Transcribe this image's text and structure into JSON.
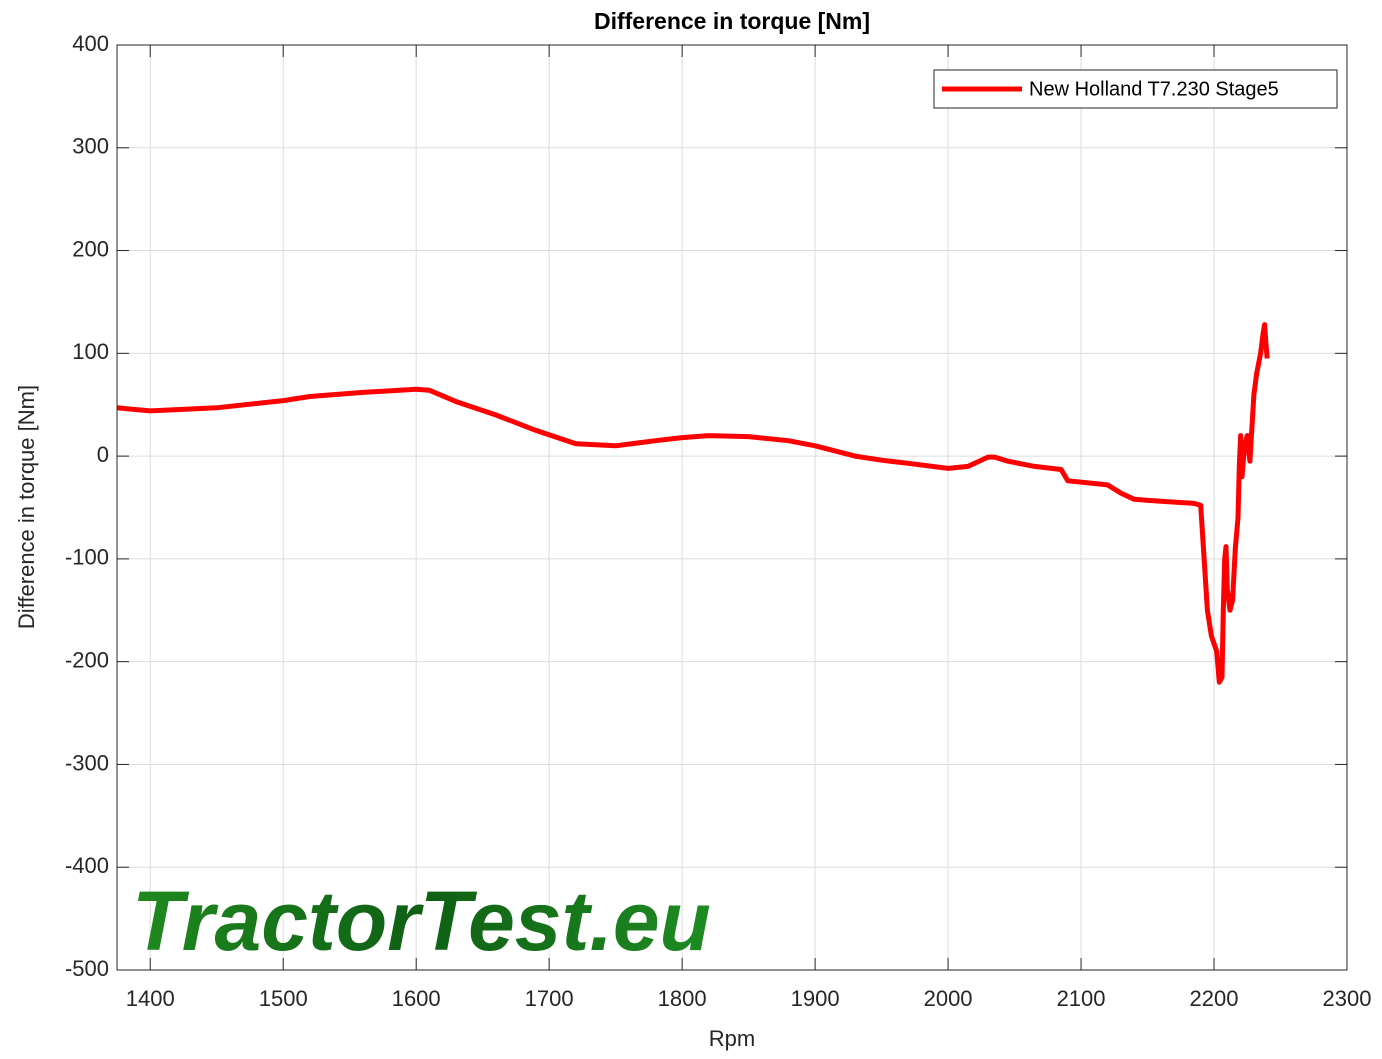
{
  "chart_data": {
    "type": "line",
    "title": "Difference in torque [Nm]",
    "xlabel": "Rpm",
    "ylabel": "Difference in torque [Nm]",
    "watermark": "TractorTest.eu",
    "x": [
      1375,
      1400,
      1450,
      1500,
      1520,
      1560,
      1600,
      1610,
      1630,
      1660,
      1690,
      1720,
      1750,
      1780,
      1800,
      1820,
      1850,
      1880,
      1900,
      1930,
      1950,
      1970,
      2000,
      2015,
      2030,
      2035,
      2045,
      2065,
      2085,
      2090,
      2120,
      2130,
      2140,
      2160,
      2185,
      2190,
      2195,
      2198,
      2202,
      2204,
      2206,
      2207,
      2208,
      2209,
      2210,
      2212,
      2214,
      2216,
      2218,
      2219,
      2220,
      2221,
      2223,
      2225,
      2227,
      2230,
      2232,
      2235,
      2237,
      2238,
      2239,
      2240
    ],
    "series": [
      {
        "name": "New Holland T7.230 Stage5",
        "color": "#ff0000",
        "values": [
          47,
          44,
          47,
          54,
          58,
          62,
          65,
          64,
          53,
          40,
          25,
          12,
          10,
          15,
          18,
          20,
          19,
          15,
          10,
          0,
          -4,
          -7,
          -12,
          -10,
          -1,
          -1,
          -5,
          -10,
          -13,
          -24,
          -28,
          -36,
          -42,
          -44,
          -46,
          -48,
          -150,
          -175,
          -190,
          -220,
          -215,
          -150,
          -100,
          -88,
          -130,
          -150,
          -140,
          -90,
          -60,
          -10,
          20,
          -20,
          10,
          20,
          -5,
          60,
          80,
          100,
          120,
          128,
          110,
          95
        ]
      }
    ],
    "xlim": [
      1375,
      2300
    ],
    "ylim": [
      -500,
      400
    ],
    "xticks": [
      1400,
      1500,
      1600,
      1700,
      1800,
      1900,
      2000,
      2100,
      2200,
      2300
    ],
    "yticks": [
      -500,
      -400,
      -300,
      -200,
      -100,
      0,
      100,
      200,
      300,
      400
    ],
    "grid": true,
    "legend": "upper right"
  }
}
